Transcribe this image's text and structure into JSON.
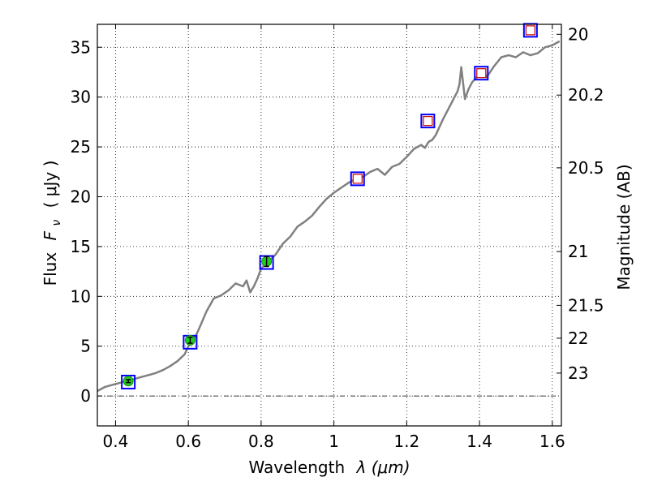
{
  "chart_data": {
    "type": "line",
    "xlabel": "Wavelength",
    "xlabel_math": "λ (μm)",
    "ylabel": "Flux",
    "ylabel_math": "F",
    "ylabel_sub": "ν",
    "ylabel_unit": "( μJy )",
    "y2label": "Magnitude (AB)",
    "xlim": [
      0.35,
      1.625
    ],
    "ylim": [
      -3,
      37.3
    ],
    "x_ticks": [
      0.4,
      0.6,
      0.8,
      1.0,
      1.2,
      1.4,
      1.6
    ],
    "x_tick_labels": [
      "0.4",
      "0.6",
      "0.8",
      "1",
      "1.2",
      "1.4",
      "1.6"
    ],
    "y_ticks": [
      0,
      5,
      10,
      15,
      20,
      25,
      30,
      35
    ],
    "y_tick_labels": [
      "0",
      "5",
      "10",
      "15",
      "20",
      "25",
      "30",
      "35"
    ],
    "y2_ticks": [
      {
        "label": "20",
        "flux": 36.3
      },
      {
        "label": "20.2",
        "flux": 30.2
      },
      {
        "label": "20.5",
        "flux": 22.9
      },
      {
        "label": "21",
        "flux": 14.5
      },
      {
        "label": "21.5",
        "flux": 9.1
      },
      {
        "label": "22",
        "flux": 5.8
      },
      {
        "label": "23",
        "flux": 2.3
      }
    ],
    "grid": true,
    "zero_line": true,
    "colors": {
      "spectrum": "#808080",
      "box": "#0000ff",
      "inner_box": "#cc0000",
      "photometry": "#22cc22",
      "grid": "#000000"
    },
    "series": [
      {
        "style": "spectrum-line",
        "x": [
          0.35,
          0.37,
          0.39,
          0.41,
          0.43,
          0.45,
          0.47,
          0.49,
          0.51,
          0.53,
          0.55,
          0.57,
          0.59,
          0.6,
          0.61,
          0.62,
          0.63,
          0.65,
          0.67,
          0.69,
          0.71,
          0.73,
          0.75,
          0.76,
          0.77,
          0.78,
          0.79,
          0.8,
          0.82,
          0.84,
          0.86,
          0.88,
          0.9,
          0.92,
          0.94,
          0.96,
          0.98,
          1.0,
          1.02,
          1.04,
          1.06,
          1.08,
          1.1,
          1.12,
          1.14,
          1.16,
          1.18,
          1.2,
          1.22,
          1.24,
          1.25,
          1.26,
          1.27,
          1.28,
          1.3,
          1.32,
          1.34,
          1.345,
          1.35,
          1.36,
          1.37,
          1.38,
          1.39,
          1.4,
          1.41,
          1.42,
          1.44,
          1.46,
          1.48,
          1.5,
          1.52,
          1.54,
          1.56,
          1.58,
          1.6,
          1.62
        ],
        "y": [
          0.5,
          0.9,
          1.1,
          1.3,
          1.5,
          1.7,
          1.9,
          2.1,
          2.3,
          2.6,
          3.0,
          3.5,
          4.2,
          5.0,
          5.3,
          6.0,
          6.8,
          8.5,
          9.8,
          10.1,
          10.6,
          11.3,
          11.0,
          11.6,
          10.4,
          11.0,
          11.8,
          12.8,
          13.5,
          14.2,
          15.3,
          16.0,
          17.0,
          17.5,
          18.1,
          19.0,
          19.8,
          20.4,
          20.9,
          21.4,
          21.8,
          22.0,
          22.5,
          22.8,
          22.2,
          23.0,
          23.3,
          24.0,
          24.8,
          25.2,
          24.9,
          25.5,
          25.7,
          26.2,
          27.8,
          29.2,
          30.6,
          31.3,
          33.0,
          29.8,
          30.8,
          31.5,
          31.9,
          32.2,
          32.8,
          32.0,
          33.1,
          34.0,
          34.2,
          34.0,
          34.5,
          34.2,
          34.4,
          35.0,
          35.2,
          35.6
        ]
      },
      {
        "style": "photometry-box",
        "x": [
          0.435,
          0.605,
          0.815,
          1.065,
          1.258,
          1.405,
          1.54
        ],
        "y": [
          1.4,
          5.4,
          13.4,
          21.8,
          27.6,
          32.4,
          36.7
        ]
      },
      {
        "style": "observed-point",
        "x": [
          0.435,
          0.605,
          0.815
        ],
        "y": [
          1.5,
          5.6,
          13.5
        ],
        "yerr": [
          0.15,
          0.3,
          0.5
        ]
      }
    ]
  }
}
